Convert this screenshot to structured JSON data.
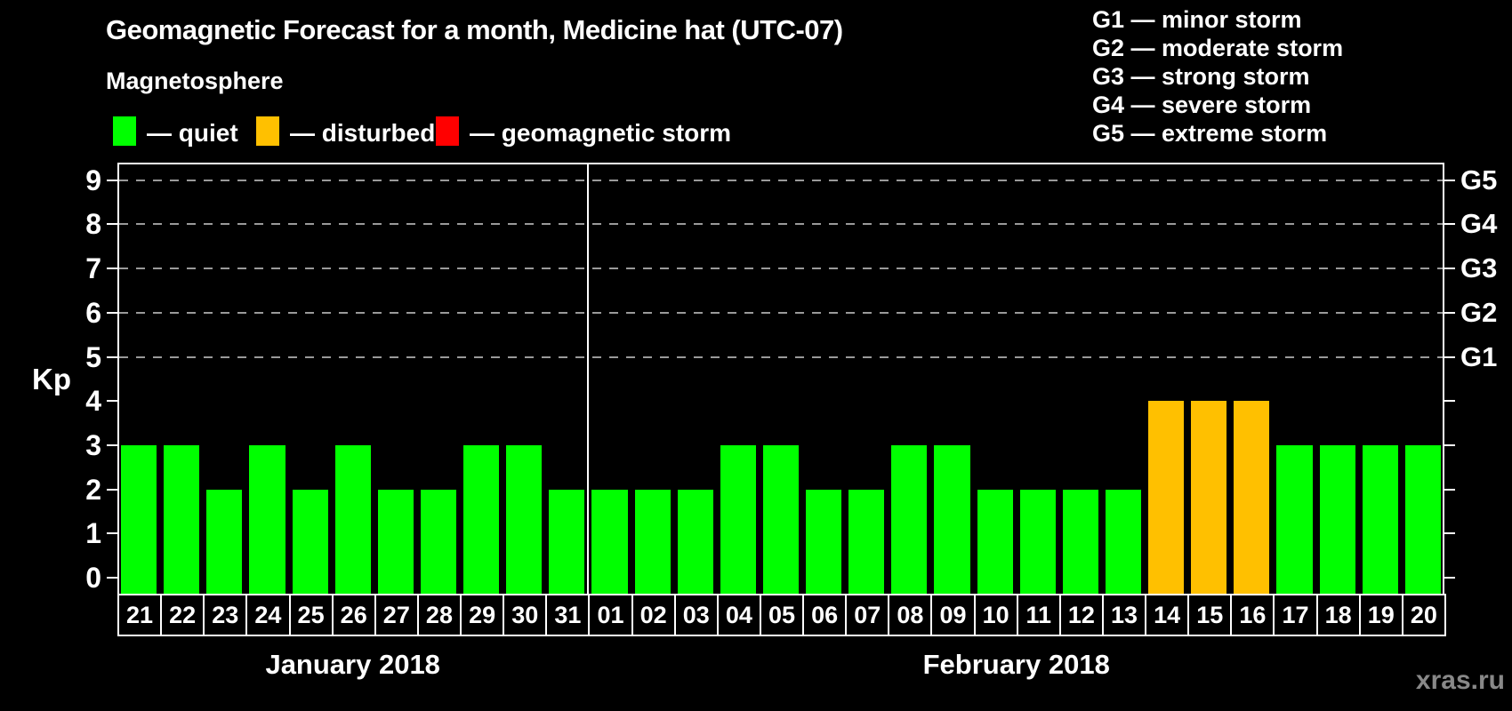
{
  "title": "Geomagnetic Forecast for a month, Medicine hat (UTC-07)",
  "legend": {
    "heading": "Magnetosphere",
    "items": [
      {
        "name": "quiet",
        "label": "— quiet",
        "color": "#00ff00"
      },
      {
        "name": "disturbed",
        "label": "— disturbed",
        "color": "#ffc000"
      },
      {
        "name": "storm",
        "label": "— geomagnetic storm",
        "color": "#ff0000"
      }
    ]
  },
  "g_legend": [
    "G1 — minor storm",
    "G2 — moderate storm",
    "G3 — strong storm",
    "G4 — severe storm",
    "G5 — extreme storm"
  ],
  "watermark": "xras.ru",
  "chart_data": {
    "type": "bar",
    "title": "Geomagnetic Forecast for a month, Medicine hat (UTC-07)",
    "xlabel": "",
    "ylabel": "Kp",
    "ylim": [
      0,
      9
    ],
    "y_ticks": [
      0,
      1,
      2,
      3,
      4,
      5,
      6,
      7,
      8,
      9
    ],
    "grid_levels": [
      5,
      6,
      7,
      8,
      9
    ],
    "grid": "dashed horizontal lines at storm levels only",
    "legend_position": "top",
    "right_axis_labels": [
      {
        "kp": 5,
        "label": "G1"
      },
      {
        "kp": 6,
        "label": "G2"
      },
      {
        "kp": 7,
        "label": "G3"
      },
      {
        "kp": 8,
        "label": "G4"
      },
      {
        "kp": 9,
        "label": "G5"
      }
    ],
    "months": [
      {
        "label": "January 2018",
        "start_index": 0,
        "count": 11
      },
      {
        "label": "February 2018",
        "start_index": 11,
        "count": 20
      }
    ],
    "bars": [
      {
        "day": "21",
        "kp": 3,
        "state": "quiet"
      },
      {
        "day": "22",
        "kp": 3,
        "state": "quiet"
      },
      {
        "day": "23",
        "kp": 2,
        "state": "quiet"
      },
      {
        "day": "24",
        "kp": 3,
        "state": "quiet"
      },
      {
        "day": "25",
        "kp": 2,
        "state": "quiet"
      },
      {
        "day": "26",
        "kp": 3,
        "state": "quiet"
      },
      {
        "day": "27",
        "kp": 2,
        "state": "quiet"
      },
      {
        "day": "28",
        "kp": 2,
        "state": "quiet"
      },
      {
        "day": "29",
        "kp": 3,
        "state": "quiet"
      },
      {
        "day": "30",
        "kp": 3,
        "state": "quiet"
      },
      {
        "day": "31",
        "kp": 2,
        "state": "quiet"
      },
      {
        "day": "01",
        "kp": 2,
        "state": "quiet"
      },
      {
        "day": "02",
        "kp": 2,
        "state": "quiet"
      },
      {
        "day": "03",
        "kp": 2,
        "state": "quiet"
      },
      {
        "day": "04",
        "kp": 3,
        "state": "quiet"
      },
      {
        "day": "05",
        "kp": 3,
        "state": "quiet"
      },
      {
        "day": "06",
        "kp": 2,
        "state": "quiet"
      },
      {
        "day": "07",
        "kp": 2,
        "state": "quiet"
      },
      {
        "day": "08",
        "kp": 3,
        "state": "quiet"
      },
      {
        "day": "09",
        "kp": 3,
        "state": "quiet"
      },
      {
        "day": "10",
        "kp": 2,
        "state": "quiet"
      },
      {
        "day": "11",
        "kp": 2,
        "state": "quiet"
      },
      {
        "day": "12",
        "kp": 2,
        "state": "quiet"
      },
      {
        "day": "13",
        "kp": 2,
        "state": "quiet"
      },
      {
        "day": "14",
        "kp": 4,
        "state": "disturbed"
      },
      {
        "day": "15",
        "kp": 4,
        "state": "disturbed"
      },
      {
        "day": "16",
        "kp": 4,
        "state": "disturbed"
      },
      {
        "day": "17",
        "kp": 3,
        "state": "quiet"
      },
      {
        "day": "18",
        "kp": 3,
        "state": "quiet"
      },
      {
        "day": "19",
        "kp": 3,
        "state": "quiet"
      },
      {
        "day": "20",
        "kp": 3,
        "state": "quiet"
      }
    ]
  }
}
